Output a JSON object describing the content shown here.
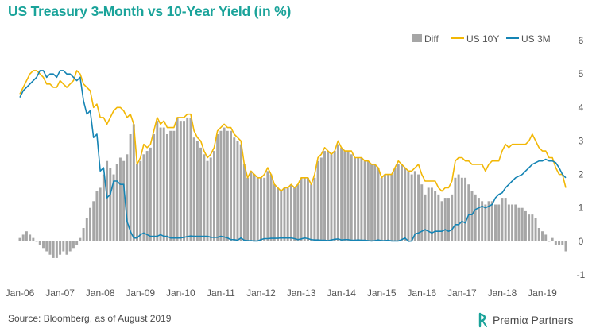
{
  "header": {
    "title": "US Treasury 3-Month vs 10-Year Yield (in %)"
  },
  "footer": {
    "source": "Source: Bloomberg, as of August 2019",
    "brand_name": "Premiα Partners"
  },
  "chart_data": {
    "type": "line",
    "title": "US Treasury 3-Month vs 10-Year Yield (in %)",
    "xlabel": "",
    "ylabel": "",
    "ylim": [
      -1,
      6
    ],
    "yticks": [
      -1,
      0,
      1,
      2,
      3,
      4,
      5,
      6
    ],
    "x_range": [
      "2006-01",
      "2019-08"
    ],
    "x_tick_labels": [
      "Jan-06",
      "Jan-07",
      "Jan-08",
      "Jan-09",
      "Jan-10",
      "Jan-11",
      "Jan-12",
      "Jan-13",
      "Jan-14",
      "Jan-15",
      "Jan-16",
      "Jan-17",
      "Jan-18",
      "Jan-19"
    ],
    "grid": false,
    "legend_position": "top-right",
    "colors": {
      "diff": "#a6a6a6",
      "us10y": "#f2b705",
      "us3m": "#1584b4"
    },
    "x": [
      "2006-01",
      "2006-02",
      "2006-03",
      "2006-04",
      "2006-05",
      "2006-06",
      "2006-07",
      "2006-08",
      "2006-09",
      "2006-10",
      "2006-11",
      "2006-12",
      "2007-01",
      "2007-02",
      "2007-03",
      "2007-04",
      "2007-05",
      "2007-06",
      "2007-07",
      "2007-08",
      "2007-09",
      "2007-10",
      "2007-11",
      "2007-12",
      "2008-01",
      "2008-02",
      "2008-03",
      "2008-04",
      "2008-05",
      "2008-06",
      "2008-07",
      "2008-08",
      "2008-09",
      "2008-10",
      "2008-11",
      "2008-12",
      "2009-01",
      "2009-02",
      "2009-03",
      "2009-04",
      "2009-05",
      "2009-06",
      "2009-07",
      "2009-08",
      "2009-09",
      "2009-10",
      "2009-11",
      "2009-12",
      "2010-01",
      "2010-02",
      "2010-03",
      "2010-04",
      "2010-05",
      "2010-06",
      "2010-07",
      "2010-08",
      "2010-09",
      "2010-10",
      "2010-11",
      "2010-12",
      "2011-01",
      "2011-02",
      "2011-03",
      "2011-04",
      "2011-05",
      "2011-06",
      "2011-07",
      "2011-08",
      "2011-09",
      "2011-10",
      "2011-11",
      "2011-12",
      "2012-01",
      "2012-02",
      "2012-03",
      "2012-04",
      "2012-05",
      "2012-06",
      "2012-07",
      "2012-08",
      "2012-09",
      "2012-10",
      "2012-11",
      "2012-12",
      "2013-01",
      "2013-02",
      "2013-03",
      "2013-04",
      "2013-05",
      "2013-06",
      "2013-07",
      "2013-08",
      "2013-09",
      "2013-10",
      "2013-11",
      "2013-12",
      "2014-01",
      "2014-02",
      "2014-03",
      "2014-04",
      "2014-05",
      "2014-06",
      "2014-07",
      "2014-08",
      "2014-09",
      "2014-10",
      "2014-11",
      "2014-12",
      "2015-01",
      "2015-02",
      "2015-03",
      "2015-04",
      "2015-05",
      "2015-06",
      "2015-07",
      "2015-08",
      "2015-09",
      "2015-10",
      "2015-11",
      "2015-12",
      "2016-01",
      "2016-02",
      "2016-03",
      "2016-04",
      "2016-05",
      "2016-06",
      "2016-07",
      "2016-08",
      "2016-09",
      "2016-10",
      "2016-11",
      "2016-12",
      "2017-01",
      "2017-02",
      "2017-03",
      "2017-04",
      "2017-05",
      "2017-06",
      "2017-07",
      "2017-08",
      "2017-09",
      "2017-10",
      "2017-11",
      "2017-12",
      "2018-01",
      "2018-02",
      "2018-03",
      "2018-04",
      "2018-05",
      "2018-06",
      "2018-07",
      "2018-08",
      "2018-09",
      "2018-10",
      "2018-11",
      "2018-12",
      "2019-01",
      "2019-02",
      "2019-03",
      "2019-04",
      "2019-05",
      "2019-06",
      "2019-07",
      "2019-08"
    ],
    "series": [
      {
        "name": "Diff",
        "type": "bar",
        "values": [
          0.1,
          0.2,
          0.3,
          0.2,
          0.1,
          0.0,
          -0.1,
          -0.2,
          -0.3,
          -0.4,
          -0.5,
          -0.5,
          -0.4,
          -0.3,
          -0.4,
          -0.3,
          -0.2,
          -0.1,
          0.1,
          0.4,
          0.7,
          1.0,
          1.2,
          1.5,
          1.6,
          2.0,
          2.4,
          2.2,
          2.0,
          2.3,
          2.5,
          2.4,
          2.6,
          3.2,
          3.5,
          2.3,
          2.4,
          2.6,
          2.7,
          2.8,
          3.2,
          3.6,
          3.4,
          3.4,
          3.2,
          3.3,
          3.3,
          3.7,
          3.6,
          3.6,
          3.7,
          3.7,
          3.1,
          3.0,
          2.8,
          2.6,
          2.4,
          2.5,
          2.7,
          3.2,
          3.3,
          3.4,
          3.3,
          3.3,
          3.1,
          3.0,
          2.9,
          2.3,
          1.9,
          2.1,
          2.0,
          1.9,
          1.9,
          1.9,
          2.1,
          2.0,
          1.7,
          1.6,
          1.5,
          1.6,
          1.6,
          1.7,
          1.6,
          1.7,
          1.9,
          1.9,
          1.9,
          1.7,
          1.9,
          2.4,
          2.5,
          2.7,
          2.7,
          2.6,
          2.7,
          2.9,
          2.8,
          2.7,
          2.7,
          2.6,
          2.5,
          2.5,
          2.5,
          2.4,
          2.4,
          2.3,
          2.3,
          2.2,
          1.9,
          2.0,
          2.0,
          2.0,
          2.2,
          2.3,
          2.3,
          2.2,
          2.1,
          2.0,
          2.1,
          2.0,
          1.7,
          1.4,
          1.6,
          1.6,
          1.5,
          1.4,
          1.2,
          1.3,
          1.3,
          1.4,
          1.9,
          2.0,
          1.9,
          1.9,
          1.7,
          1.5,
          1.4,
          1.3,
          1.2,
          1.1,
          1.2,
          1.2,
          1.1,
          1.1,
          1.3,
          1.3,
          1.1,
          1.1,
          1.1,
          1.0,
          1.0,
          0.9,
          0.8,
          0.8,
          0.7,
          0.4,
          0.3,
          0.2,
          0.0,
          0.1,
          -0.1,
          -0.1,
          -0.1,
          -0.3
        ]
      },
      {
        "name": "US 10Y",
        "type": "line",
        "values": [
          4.4,
          4.6,
          4.8,
          5.0,
          5.1,
          5.1,
          5.0,
          4.9,
          4.7,
          4.7,
          4.6,
          4.6,
          4.8,
          4.7,
          4.6,
          4.7,
          4.8,
          5.1,
          5.0,
          4.7,
          4.6,
          4.5,
          4.0,
          4.1,
          3.7,
          3.7,
          3.5,
          3.7,
          3.9,
          4.0,
          4.0,
          3.9,
          3.7,
          3.8,
          3.5,
          2.3,
          2.5,
          2.9,
          2.8,
          2.9,
          3.3,
          3.7,
          3.5,
          3.6,
          3.4,
          3.4,
          3.4,
          3.7,
          3.7,
          3.7,
          3.8,
          3.8,
          3.3,
          3.1,
          3.0,
          2.7,
          2.5,
          2.6,
          2.8,
          3.3,
          3.4,
          3.5,
          3.4,
          3.4,
          3.2,
          3.1,
          3.0,
          2.3,
          1.9,
          2.1,
          2.0,
          1.9,
          1.9,
          2.0,
          2.2,
          2.0,
          1.7,
          1.6,
          1.5,
          1.6,
          1.6,
          1.7,
          1.6,
          1.7,
          1.9,
          1.9,
          1.9,
          1.7,
          2.0,
          2.5,
          2.6,
          2.8,
          2.7,
          2.6,
          2.7,
          3.0,
          2.8,
          2.7,
          2.7,
          2.7,
          2.5,
          2.5,
          2.5,
          2.4,
          2.4,
          2.3,
          2.3,
          2.2,
          1.9,
          2.0,
          2.0,
          2.0,
          2.2,
          2.4,
          2.3,
          2.2,
          2.1,
          2.1,
          2.2,
          2.3,
          2.0,
          1.8,
          1.8,
          1.8,
          1.8,
          1.6,
          1.5,
          1.6,
          1.6,
          1.8,
          2.4,
          2.5,
          2.5,
          2.4,
          2.4,
          2.3,
          2.3,
          2.3,
          2.3,
          2.1,
          2.3,
          2.4,
          2.4,
          2.4,
          2.7,
          2.9,
          2.8,
          2.9,
          2.9,
          2.9,
          2.9,
          2.9,
          3.0,
          3.2,
          3.0,
          2.8,
          2.7,
          2.7,
          2.5,
          2.5,
          2.2,
          2.0,
          2.0,
          1.6
        ]
      },
      {
        "name": "US 3M",
        "type": "line",
        "values": [
          4.3,
          4.5,
          4.6,
          4.7,
          4.8,
          4.9,
          5.1,
          5.1,
          4.9,
          5.0,
          5.0,
          4.9,
          5.1,
          5.1,
          5.0,
          5.0,
          4.9,
          4.8,
          4.9,
          4.2,
          3.8,
          3.9,
          3.1,
          3.2,
          2.1,
          2.2,
          1.3,
          1.4,
          1.8,
          1.8,
          1.7,
          1.7,
          0.6,
          0.3,
          0.1,
          0.1,
          0.2,
          0.25,
          0.2,
          0.15,
          0.15,
          0.15,
          0.2,
          0.15,
          0.15,
          0.1,
          0.1,
          0.1,
          0.1,
          0.12,
          0.14,
          0.16,
          0.15,
          0.15,
          0.15,
          0.15,
          0.15,
          0.12,
          0.12,
          0.12,
          0.15,
          0.13,
          0.1,
          0.05,
          0.05,
          0.03,
          0.1,
          0.03,
          0.02,
          0.02,
          0.01,
          0.01,
          0.05,
          0.08,
          0.08,
          0.09,
          0.09,
          0.09,
          0.1,
          0.1,
          0.1,
          0.1,
          0.08,
          0.05,
          0.07,
          0.1,
          0.08,
          0.05,
          0.04,
          0.04,
          0.03,
          0.03,
          0.02,
          0.04,
          0.06,
          0.07,
          0.04,
          0.05,
          0.05,
          0.03,
          0.03,
          0.04,
          0.03,
          0.03,
          0.02,
          0.01,
          0.02,
          0.04,
          0.02,
          0.02,
          0.03,
          0.01,
          0.01,
          0.01,
          0.05,
          0.1,
          0.0,
          0.01,
          0.22,
          0.25,
          0.3,
          0.35,
          0.3,
          0.25,
          0.3,
          0.3,
          0.3,
          0.35,
          0.3,
          0.35,
          0.5,
          0.5,
          0.6,
          0.55,
          0.8,
          0.8,
          0.95,
          1.0,
          1.05,
          1.0,
          1.05,
          1.1,
          1.3,
          1.4,
          1.45,
          1.6,
          1.7,
          1.8,
          1.9,
          1.95,
          2.0,
          2.1,
          2.2,
          2.3,
          2.35,
          2.4,
          2.4,
          2.45,
          2.4,
          2.4,
          2.35,
          2.2,
          2.0,
          1.9
        ]
      }
    ]
  }
}
